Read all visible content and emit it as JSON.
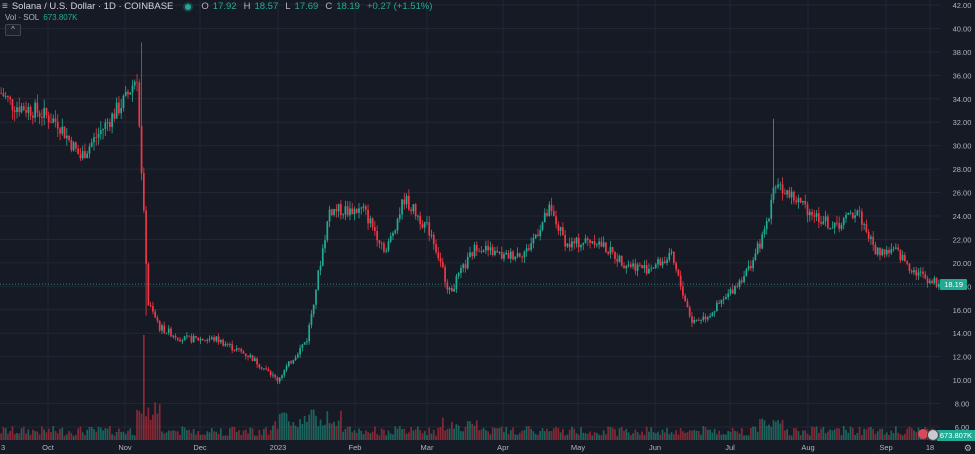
{
  "legend": {
    "title": "Solana / U.S. Dollar · 1D · COINBASE",
    "open_k": "O",
    "open": "17.92",
    "high_k": "H",
    "high": "18.57",
    "low_k": "L",
    "low": "17.69",
    "close_k": "C",
    "close": "18.19",
    "change": "+0.27 (+1.51%)"
  },
  "volume_legend": {
    "label": "Vol · SOL",
    "value": "673.807K"
  },
  "collapse_icon": "chevron-up-icon",
  "menu_icon": "hamburger-icon",
  "last_price_label": "18.19",
  "last_volume_label": "673.807K",
  "colors": {
    "up": "#22ab94",
    "down": "#f23645",
    "background": "#161a25",
    "grid": "#232733",
    "text": "#b2b5be"
  },
  "chart_data": {
    "type": "candlestick",
    "title": "Solana / U.S. Dollar · 1D · COINBASE",
    "y_axis": {
      "side": "right",
      "ticks": [
        6,
        8,
        10,
        12,
        14,
        16,
        18,
        20,
        22,
        24,
        26,
        28,
        30,
        32,
        34,
        36,
        38,
        40,
        42
      ],
      "ylim": [
        6,
        42
      ]
    },
    "x_axis": {
      "ticks": [
        "Oct",
        "Nov",
        "Dec",
        "2023",
        "Feb",
        "Mar",
        "Apr",
        "May",
        "Jun",
        "Jul",
        "Aug",
        "Sep",
        "18"
      ],
      "first_tick_partial": "3"
    },
    "price_path_keypoints": [
      {
        "t": 0,
        "price": 34.5
      },
      {
        "t": 5,
        "price": 33.5
      },
      {
        "t": 15,
        "price": 33.0
      },
      {
        "t": 25,
        "price": 32.0
      },
      {
        "t": 35,
        "price": 29.0
      },
      {
        "t": 45,
        "price": 31.5
      },
      {
        "t": 55,
        "price": 34.0
      },
      {
        "t": 60,
        "price": 36.0
      },
      {
        "t": 63,
        "price": 24.0
      },
      {
        "t": 65,
        "price": 16.5
      },
      {
        "t": 70,
        "price": 14.5
      },
      {
        "t": 80,
        "price": 13.5
      },
      {
        "t": 95,
        "price": 13.5
      },
      {
        "t": 110,
        "price": 12.0
      },
      {
        "t": 122,
        "price": 10.0
      },
      {
        "t": 135,
        "price": 13.5
      },
      {
        "t": 145,
        "price": 24.5
      },
      {
        "t": 160,
        "price": 24.5
      },
      {
        "t": 170,
        "price": 21.0
      },
      {
        "t": 178,
        "price": 25.5
      },
      {
        "t": 190,
        "price": 22.5
      },
      {
        "t": 198,
        "price": 17.5
      },
      {
        "t": 210,
        "price": 21.5
      },
      {
        "t": 222,
        "price": 20.5
      },
      {
        "t": 232,
        "price": 21.0
      },
      {
        "t": 242,
        "price": 24.5
      },
      {
        "t": 250,
        "price": 21.5
      },
      {
        "t": 262,
        "price": 22.0
      },
      {
        "t": 275,
        "price": 20.0
      },
      {
        "t": 285,
        "price": 19.5
      },
      {
        "t": 296,
        "price": 20.5
      },
      {
        "t": 305,
        "price": 15.0
      },
      {
        "t": 312,
        "price": 15.5
      },
      {
        "t": 320,
        "price": 17.0
      },
      {
        "t": 330,
        "price": 19.5
      },
      {
        "t": 337,
        "price": 22.5
      },
      {
        "t": 342,
        "price": 27.0
      },
      {
        "t": 350,
        "price": 25.5
      },
      {
        "t": 360,
        "price": 24.0
      },
      {
        "t": 368,
        "price": 23.0
      },
      {
        "t": 378,
        "price": 24.5
      },
      {
        "t": 386,
        "price": 21.0
      },
      {
        "t": 395,
        "price": 21.0
      },
      {
        "t": 402,
        "price": 19.5
      },
      {
        "t": 410,
        "price": 18.5
      },
      {
        "t": 414,
        "price": 18.19
      }
    ],
    "last": {
      "open": 17.92,
      "high": 18.57,
      "low": 17.69,
      "close": 18.19,
      "change": 0.27,
      "change_pct": 1.51
    },
    "volume_last": "673.807K"
  }
}
